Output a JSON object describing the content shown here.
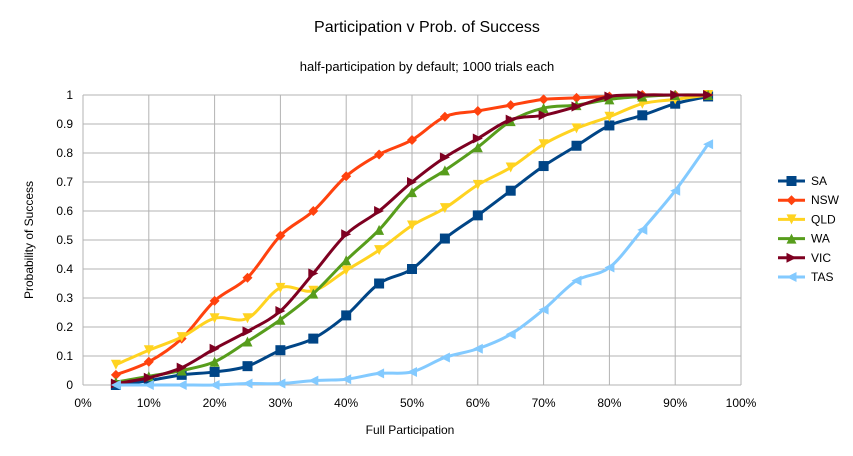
{
  "chart_data": {
    "type": "line",
    "title": "Participation v Prob. of Success",
    "subtitle": "half-participation by default; 1000 trials each",
    "xlabel": "Full Participation",
    "ylabel": "Probability of Success",
    "xlim": [
      0,
      100
    ],
    "ylim": [
      0,
      1
    ],
    "x_ticks": [
      "0%",
      "10%",
      "20%",
      "30%",
      "40%",
      "50%",
      "60%",
      "70%",
      "80%",
      "90%",
      "100%"
    ],
    "y_ticks": [
      "0",
      "0.1",
      "0.2",
      "0.3",
      "0.4",
      "0.5",
      "0.6",
      "0.7",
      "0.8",
      "0.9",
      "1"
    ],
    "grid": true,
    "legend_position": "right",
    "x": [
      5,
      10,
      15,
      20,
      25,
      30,
      35,
      40,
      45,
      50,
      55,
      60,
      65,
      70,
      75,
      80,
      85,
      90,
      95
    ],
    "series": [
      {
        "name": "SA",
        "color": "#004586",
        "marker": "square",
        "values": [
          0.0,
          0.015,
          0.035,
          0.045,
          0.065,
          0.12,
          0.16,
          0.24,
          0.35,
          0.4,
          0.505,
          0.585,
          0.67,
          0.755,
          0.825,
          0.895,
          0.93,
          0.97,
          0.995
        ]
      },
      {
        "name": "NSW",
        "color": "#ff420e",
        "marker": "diamond",
        "values": [
          0.035,
          0.08,
          0.16,
          0.29,
          0.37,
          0.515,
          0.6,
          0.72,
          0.795,
          0.845,
          0.925,
          0.945,
          0.965,
          0.985,
          0.99,
          0.995,
          1.0,
          1.0,
          1.0
        ]
      },
      {
        "name": "QLD",
        "color": "#ffd320",
        "marker": "triangle-down",
        "values": [
          0.07,
          0.12,
          0.165,
          0.23,
          0.23,
          0.335,
          0.325,
          0.395,
          0.465,
          0.55,
          0.61,
          0.69,
          0.75,
          0.83,
          0.885,
          0.925,
          0.97,
          0.985,
          1.0
        ]
      },
      {
        "name": "WA",
        "color": "#579d1c",
        "marker": "triangle-up",
        "values": [
          0.01,
          0.03,
          0.05,
          0.08,
          0.15,
          0.225,
          0.315,
          0.43,
          0.535,
          0.665,
          0.74,
          0.82,
          0.91,
          0.955,
          0.965,
          0.985,
          0.995,
          1.0,
          1.0
        ]
      },
      {
        "name": "VIC",
        "color": "#7e0021",
        "marker": "triangle-right",
        "values": [
          0.005,
          0.025,
          0.06,
          0.125,
          0.185,
          0.255,
          0.385,
          0.52,
          0.6,
          0.7,
          0.785,
          0.85,
          0.915,
          0.93,
          0.96,
          0.995,
          1.0,
          1.0,
          1.0
        ]
      },
      {
        "name": "TAS",
        "color": "#83caff",
        "marker": "triangle-left",
        "values": [
          0.0,
          0.0,
          0.0,
          0.0,
          0.005,
          0.005,
          0.015,
          0.02,
          0.04,
          0.045,
          0.095,
          0.125,
          0.175,
          0.26,
          0.36,
          0.405,
          0.535,
          0.67,
          0.83
        ]
      }
    ]
  }
}
